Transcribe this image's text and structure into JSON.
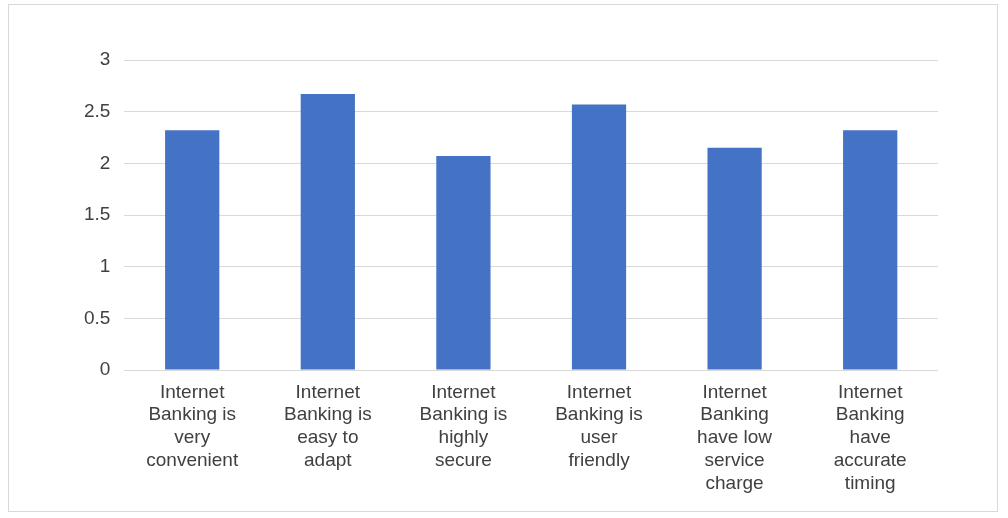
{
  "chart_data": {
    "type": "bar",
    "categories": [
      "Internet Banking is very convenient",
      "Internet Banking is easy to adapt",
      "Internet Banking is highly secure",
      "Internet Banking is user friendly",
      "Internet Banking have low service charge",
      "Internet Banking have accurate timing"
    ],
    "values": [
      2.32,
      2.67,
      2.07,
      2.57,
      2.15,
      2.32
    ],
    "color": "#4472c4",
    "ylim": [
      0,
      3
    ],
    "yticks": [
      0,
      0.5,
      1,
      1.5,
      2,
      2.5,
      3
    ],
    "grid": "y"
  }
}
